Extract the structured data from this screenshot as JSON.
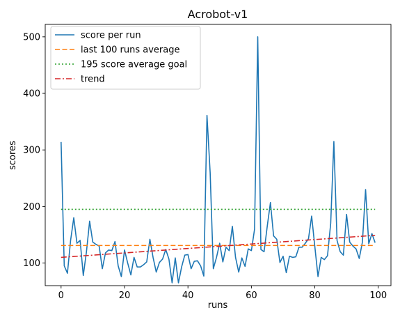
{
  "chart_data": {
    "type": "line",
    "title": "Acrobot-v1",
    "xlabel": "runs",
    "ylabel": "scores",
    "xlim": [
      -5,
      104
    ],
    "ylim": [
      60,
      522
    ],
    "xticks": [
      0,
      20,
      40,
      60,
      80,
      100
    ],
    "yticks": [
      100,
      200,
      300,
      400,
      500
    ],
    "grid": false,
    "legend_position": "top-left",
    "series": [
      {
        "name": "score per run",
        "style": "solid",
        "color": "#1f77b4",
        "x": [
          0,
          1,
          2,
          3,
          4,
          5,
          6,
          7,
          8,
          9,
          10,
          11,
          12,
          13,
          14,
          15,
          16,
          17,
          18,
          19,
          20,
          21,
          22,
          23,
          24,
          25,
          26,
          27,
          28,
          29,
          30,
          31,
          32,
          33,
          34,
          35,
          36,
          37,
          38,
          39,
          40,
          41,
          42,
          43,
          44,
          45,
          46,
          47,
          48,
          49,
          50,
          51,
          52,
          53,
          54,
          55,
          56,
          57,
          58,
          59,
          60,
          61,
          62,
          63,
          64,
          65,
          66,
          67,
          68,
          69,
          70,
          71,
          72,
          73,
          74,
          75,
          76,
          77,
          78,
          79,
          80,
          81,
          82,
          83,
          84,
          85,
          86,
          87,
          88,
          89,
          90,
          91,
          92,
          93,
          94,
          95,
          96,
          97,
          98,
          99
        ],
        "y": [
          314,
          95,
          82,
          140,
          180,
          135,
          140,
          78,
          120,
          174,
          137,
          133,
          130,
          90,
          118,
          123,
          122,
          138,
          95,
          76,
          123,
          100,
          79,
          110,
          93,
          93,
          97,
          102,
          142,
          110,
          84,
          101,
          107,
          124,
          107,
          65,
          109,
          65,
          93,
          114,
          115,
          90,
          103,
          104,
          95,
          77,
          361,
          260,
          90,
          110,
          135,
          102,
          128,
          122,
          165,
          110,
          84,
          109,
          94,
          125,
          122,
          160,
          500,
          124,
          120,
          165,
          207,
          148,
          142,
          101,
          112,
          83,
          112,
          110,
          111,
          128,
          128,
          135,
          143,
          183,
          129,
          76,
          110,
          106,
          113,
          170,
          315,
          140,
          120,
          114,
          186,
          137,
          130,
          125,
          108,
          137,
          230,
          134,
          152,
          136
        ]
      },
      {
        "name": "last 100 runs average",
        "style": "dashed",
        "color": "#ff7f0e",
        "x": [
          0,
          99
        ],
        "y": [
          131,
          131
        ]
      },
      {
        "name": "195 score average goal",
        "style": "dotted",
        "color": "#2ca02c",
        "x": [
          0,
          99
        ],
        "y": [
          195,
          195
        ]
      },
      {
        "name": "trend",
        "style": "dashdot",
        "color": "#d62728",
        "x": [
          0,
          99
        ],
        "y": [
          110,
          149
        ]
      }
    ]
  }
}
